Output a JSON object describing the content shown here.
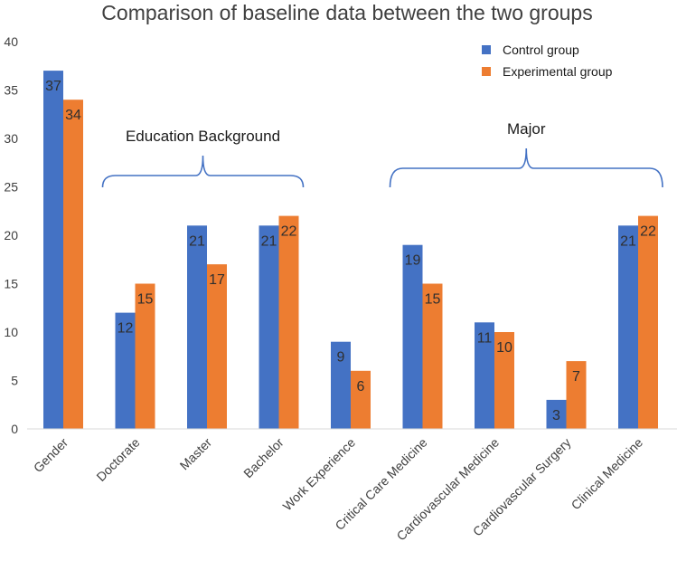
{
  "chart_data": {
    "type": "bar",
    "title": "Comparison of baseline data between the two groups",
    "xlabel": "",
    "ylabel": "",
    "ylim": [
      0,
      40
    ],
    "yticks": [
      0,
      5,
      10,
      15,
      20,
      25,
      30,
      35,
      40
    ],
    "grid": false,
    "legend_position": "top-right",
    "categories": [
      "Gender",
      "Doctorate",
      "Master",
      "Bachelor",
      "Work Experience",
      "Critical Care Medicine",
      "Cardiovascular Medicine",
      "Cardiovascular Surgery",
      "Clinical Medicine"
    ],
    "series": [
      {
        "name": "Control group",
        "color": "#4472C4",
        "values": [
          37,
          12,
          21,
          21,
          9,
          19,
          11,
          3,
          21
        ]
      },
      {
        "name": "Experimental group",
        "color": "#ED7D31",
        "values": [
          34,
          15,
          17,
          22,
          6,
          15,
          10,
          7,
          22
        ]
      }
    ],
    "annotations": [
      {
        "text": "Education Background",
        "span": [
          "Doctorate",
          "Bachelor"
        ]
      },
      {
        "text": "Major",
        "span": [
          "Critical Care Medicine",
          "Clinical Medicine"
        ]
      }
    ],
    "annotation_color": "#4472C4"
  }
}
